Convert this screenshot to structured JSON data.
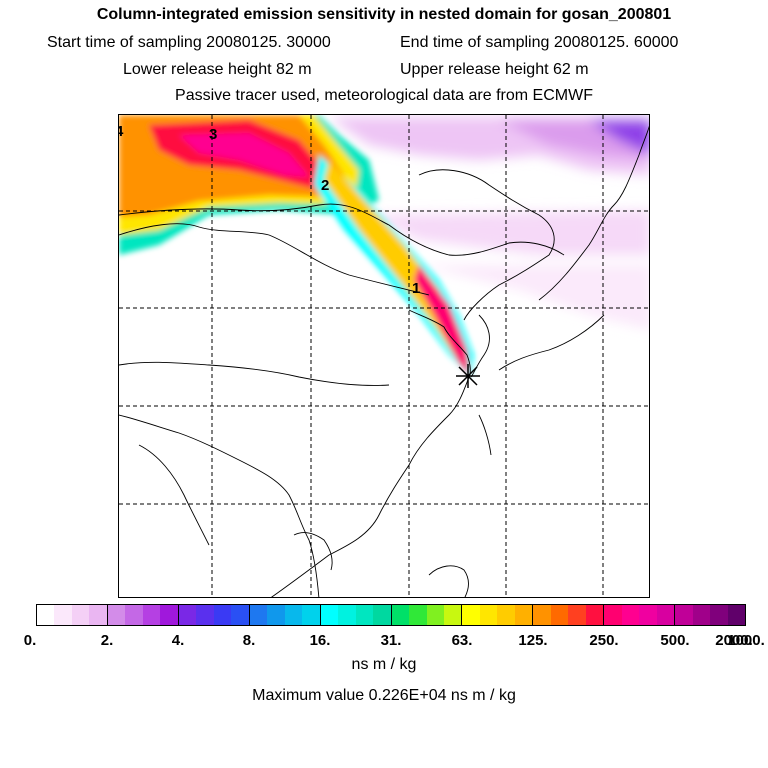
{
  "header": {
    "title": "Column-integrated emission sensitivity in nested domain for gosan_200801",
    "start_label": "Start time of sampling 20080125. 30000",
    "end_label": "End time of sampling 20080125. 60000",
    "lower_label": "Lower release height   82 m",
    "upper_label": "Upper release height   62 m",
    "tracer_label": "Passive tracer used, meteorological data are from ECMWF"
  },
  "map": {
    "labels": [
      {
        "text": "4"
      },
      {
        "text": "3"
      },
      {
        "text": "2"
      },
      {
        "text": "1"
      }
    ]
  },
  "legend": {
    "ticks": [
      "0.",
      "2.",
      "4.",
      "8.",
      "16.",
      "31.",
      "63.",
      "125.",
      "250.",
      "500.",
      "1000.",
      "2000."
    ],
    "colors": [
      [
        "#ffffff",
        "#fbe8fb",
        "#f4d0f6",
        "#eab6f2"
      ],
      [
        "#d38ce9",
        "#c468e6",
        "#b540e3",
        "#a018dc"
      ],
      [
        "#7a28e6",
        "#5a30ee",
        "#3a3af4",
        "#2a50f4"
      ],
      [
        "#1e78f0",
        "#1098ec",
        "#08b8ec",
        "#00d2ec"
      ],
      [
        "#00ffff",
        "#00f2e0",
        "#00e6c0",
        "#00d8a0"
      ],
      [
        "#00e068",
        "#30e838",
        "#80f020",
        "#c8f810"
      ],
      [
        "#ffff00",
        "#ffe600",
        "#ffcc00",
        "#ffb000"
      ],
      [
        "#ff9200",
        "#ff6a00",
        "#ff4020",
        "#ff1040"
      ],
      [
        "#ff0070",
        "#ff0090",
        "#f000a0",
        "#d800a0"
      ],
      [
        "#c00098",
        "#a0008a",
        "#80007c",
        "#60006a"
      ]
    ],
    "units": "ns m / kg",
    "max_value": "Maximum value  0.226E+04 ns m / kg"
  }
}
